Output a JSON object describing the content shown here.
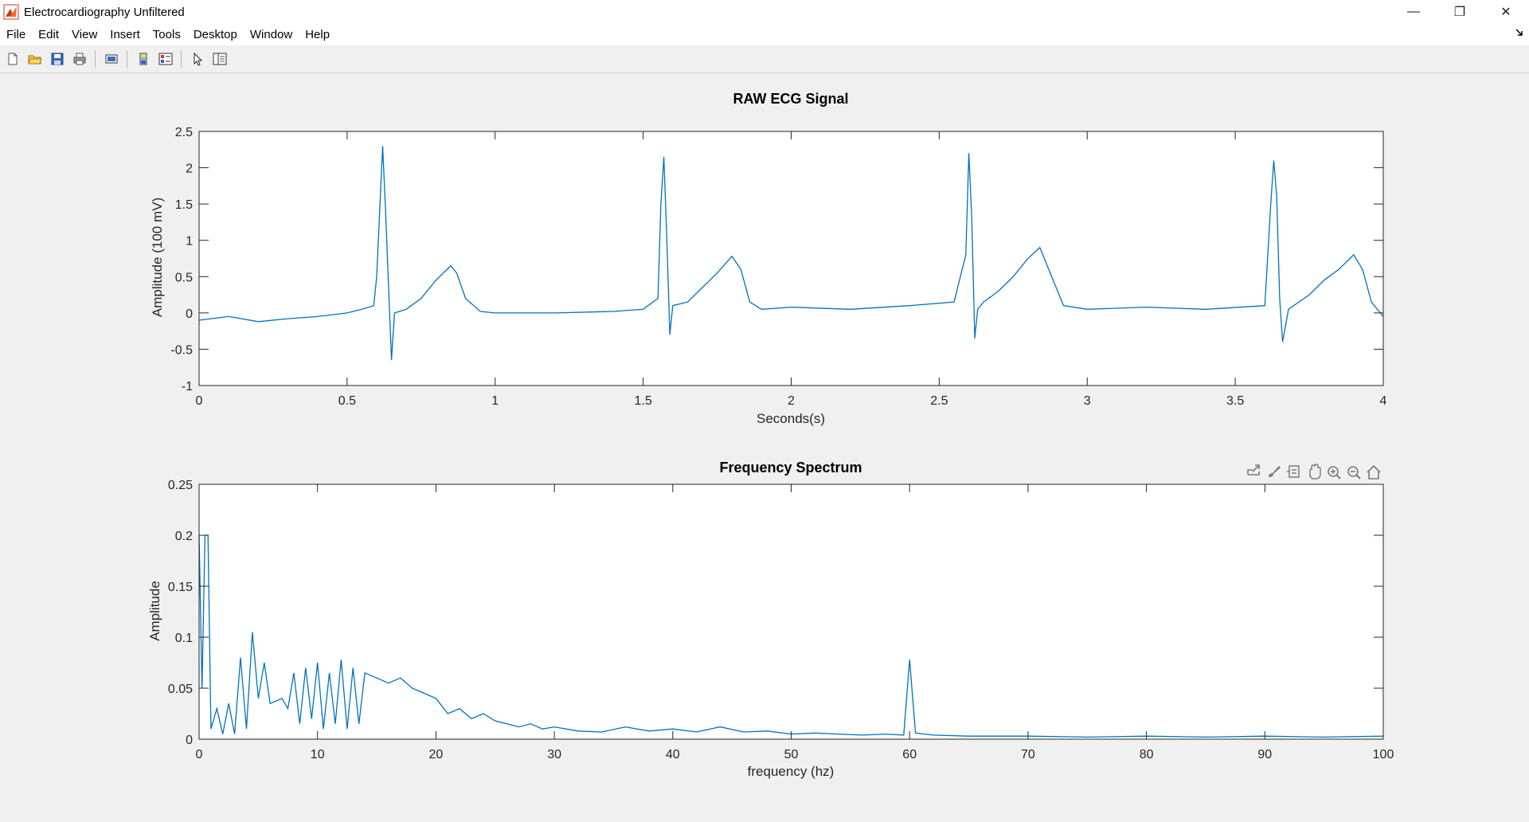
{
  "window": {
    "title": "Electrocardiography Unfiltered",
    "minimize_glyph": "—",
    "restore_glyph": "❐",
    "close_glyph": "✕"
  },
  "menu": {
    "items": [
      "File",
      "Edit",
      "View",
      "Insert",
      "Tools",
      "Desktop",
      "Window",
      "Help"
    ]
  },
  "toolbar": {
    "icons": [
      "new-figure-icon",
      "open-file-icon",
      "save-icon",
      "print-icon",
      "link-plot-icon",
      "insert-colorbar-icon",
      "insert-legend-icon",
      "edit-plot-icon",
      "property-inspector-icon"
    ]
  },
  "axes_toolbar": {
    "icons": [
      "export-icon",
      "brush-icon",
      "data-tips-icon",
      "pan-icon",
      "zoom-in-icon",
      "zoom-out-icon",
      "restore-view-icon"
    ]
  },
  "colors": {
    "line": "#0072bd",
    "axis": "#262626",
    "background": "#f0f0f0",
    "plot_bg": "#ffffff"
  },
  "chart_data": [
    {
      "type": "line",
      "title": "RAW ECG Signal",
      "xlabel": "Seconds(s)",
      "ylabel": "Amplitude (100 mV)",
      "xlim": [
        0,
        4
      ],
      "ylim": [
        -1,
        2.5
      ],
      "xticks": [
        0,
        0.5,
        1,
        1.5,
        2,
        2.5,
        3,
        3.5,
        4
      ],
      "xtick_labels": [
        "0",
        "0.5",
        "1",
        "1.5",
        "2",
        "2.5",
        "3",
        "3.5",
        "4"
      ],
      "yticks": [
        -1,
        -0.5,
        0,
        0.5,
        1,
        1.5,
        2,
        2.5
      ],
      "ytick_labels": [
        "-1",
        "-0.5",
        "0",
        "0.5",
        "1",
        "1.5",
        "2",
        "2.5"
      ],
      "grid": false,
      "series": [
        {
          "x": [
            0,
            0.1,
            0.2,
            0.3,
            0.4,
            0.5,
            0.55,
            0.59,
            0.6,
            0.62,
            0.63,
            0.65,
            0.66,
            0.7,
            0.75,
            0.8,
            0.85,
            0.87,
            0.9,
            0.95,
            1.0,
            1.2,
            1.4,
            1.5,
            1.55,
            1.56,
            1.57,
            1.58,
            1.59,
            1.6,
            1.65,
            1.7,
            1.75,
            1.8,
            1.83,
            1.86,
            1.9,
            2.0,
            2.2,
            2.4,
            2.55,
            2.59,
            2.6,
            2.61,
            2.62,
            2.63,
            2.65,
            2.7,
            2.75,
            2.8,
            2.84,
            2.88,
            2.92,
            3.0,
            3.2,
            3.4,
            3.6,
            3.62,
            3.63,
            3.64,
            3.65,
            3.66,
            3.68,
            3.75,
            3.8,
            3.85,
            3.9,
            3.93,
            3.96,
            4.0
          ],
          "y": [
            -0.1,
            -0.05,
            -0.12,
            -0.08,
            -0.05,
            0.0,
            0.05,
            0.1,
            0.5,
            2.3,
            1.4,
            -0.65,
            0.0,
            0.05,
            0.2,
            0.45,
            0.65,
            0.55,
            0.2,
            0.02,
            0.0,
            0.0,
            0.02,
            0.05,
            0.2,
            1.5,
            2.15,
            1.0,
            -0.3,
            0.1,
            0.15,
            0.35,
            0.55,
            0.78,
            0.6,
            0.15,
            0.05,
            0.08,
            0.05,
            0.1,
            0.15,
            0.8,
            2.2,
            1.3,
            -0.35,
            0.05,
            0.15,
            0.3,
            0.5,
            0.75,
            0.9,
            0.5,
            0.1,
            0.05,
            0.08,
            0.05,
            0.1,
            1.5,
            2.1,
            1.6,
            0.2,
            -0.4,
            0.05,
            0.25,
            0.45,
            0.6,
            0.8,
            0.6,
            0.15,
            -0.05
          ]
        }
      ]
    },
    {
      "type": "line",
      "title": "Frequency Spectrum",
      "xlabel": "frequency (hz)",
      "ylabel": "Amplitude",
      "xlim": [
        0,
        100
      ],
      "ylim": [
        0,
        0.25
      ],
      "xticks": [
        0,
        10,
        20,
        30,
        40,
        50,
        60,
        70,
        80,
        90,
        100
      ],
      "xtick_labels": [
        "0",
        "10",
        "20",
        "30",
        "40",
        "50",
        "60",
        "70",
        "80",
        "90",
        "100"
      ],
      "yticks": [
        0,
        0.05,
        0.1,
        0.15,
        0.2,
        0.25
      ],
      "ytick_labels": [
        "0",
        "0.05",
        "0.1",
        "0.15",
        "0.2",
        "0.25"
      ],
      "grid": false,
      "series": [
        {
          "x": [
            0,
            0.25,
            0.5,
            0.75,
            1,
            1.5,
            2,
            2.5,
            3,
            3.5,
            4,
            4.5,
            5,
            5.5,
            6,
            7,
            7.5,
            8,
            8.5,
            9,
            9.5,
            10,
            10.5,
            11,
            11.5,
            12,
            12.5,
            13,
            13.5,
            14,
            15,
            16,
            17,
            18,
            19,
            20,
            21,
            22,
            23,
            24,
            25,
            26,
            27,
            28,
            29,
            30,
            32,
            34,
            36,
            38,
            40,
            42,
            44,
            46,
            48,
            50,
            52,
            54,
            56,
            58,
            59.5,
            60,
            60.5,
            62,
            65,
            70,
            75,
            80,
            85,
            90,
            95,
            100
          ],
          "y": [
            0.2,
            0.05,
            0.2,
            0.2,
            0.01,
            0.03,
            0.005,
            0.035,
            0.005,
            0.08,
            0.01,
            0.105,
            0.04,
            0.075,
            0.035,
            0.04,
            0.03,
            0.065,
            0.015,
            0.07,
            0.02,
            0.075,
            0.01,
            0.065,
            0.015,
            0.078,
            0.01,
            0.07,
            0.015,
            0.065,
            0.06,
            0.055,
            0.06,
            0.05,
            0.045,
            0.04,
            0.025,
            0.03,
            0.02,
            0.025,
            0.018,
            0.015,
            0.012,
            0.015,
            0.01,
            0.012,
            0.008,
            0.007,
            0.012,
            0.008,
            0.01,
            0.007,
            0.012,
            0.007,
            0.008,
            0.005,
            0.006,
            0.005,
            0.004,
            0.005,
            0.004,
            0.078,
            0.006,
            0.004,
            0.003,
            0.003,
            0.002,
            0.003,
            0.002,
            0.003,
            0.002,
            0.003
          ]
        }
      ]
    }
  ]
}
